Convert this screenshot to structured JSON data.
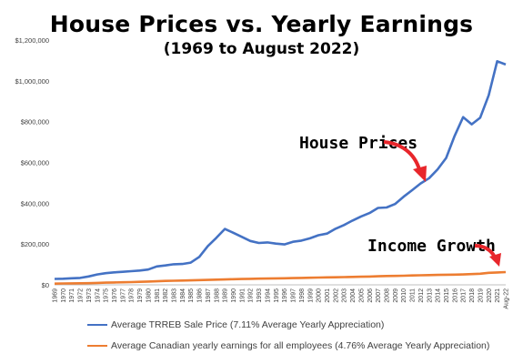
{
  "chart_data": {
    "type": "line",
    "title": "House Prices vs. Yearly Earnings",
    "subtitle": "(1969 to August 2022)",
    "categories": [
      "1969",
      "1970",
      "1971",
      "1972",
      "1973",
      "1974",
      "1975",
      "1976",
      "1977",
      "1978",
      "1979",
      "1980",
      "1981",
      "1982",
      "1983",
      "1984",
      "1985",
      "1986",
      "1987",
      "1988",
      "1989",
      "1990",
      "1991",
      "1992",
      "1993",
      "1994",
      "1995",
      "1996",
      "1997",
      "1998",
      "1999",
      "2000",
      "2001",
      "2002",
      "2003",
      "2004",
      "2005",
      "2006",
      "2007",
      "2008",
      "2009",
      "2010",
      "2011",
      "2012",
      "2013",
      "2014",
      "2015",
      "2016",
      "2017",
      "2018",
      "2019",
      "2020",
      "2021",
      "Aug-22"
    ],
    "y_ticks": [
      "$0",
      "$200,000",
      "$400,000",
      "$600,000",
      "$800,000",
      "$1,000,000",
      "$1,200,000"
    ],
    "ylim": [
      0,
      1200000
    ],
    "grid": false,
    "legend_position": "bottom",
    "series": [
      {
        "name": "Average TRREB Sale Price (7.11% Average Yearly Appreciation)",
        "color": "#4472c4",
        "values": [
          29000,
          30000,
          32000,
          34000,
          41000,
          51000,
          57000,
          61000,
          64000,
          67000,
          70000,
          75000,
          90000,
          95000,
          101000,
          102000,
          109000,
          137000,
          190000,
          230000,
          274000,
          255000,
          235000,
          215000,
          205000,
          208000,
          202000,
          198000,
          211000,
          217000,
          228000,
          243000,
          251000,
          275000,
          293000,
          315000,
          335000,
          352000,
          377000,
          379000,
          396000,
          432000,
          464000,
          497000,
          523000,
          566000,
          622000,
          730000,
          822000,
          787000,
          819000,
          929000,
          1096000,
          1080000
        ]
      },
      {
        "name": "Average Canadian yearly earnings for all employees (4.76% Average Yearly Appreciation)",
        "color": "#ed7d31",
        "values": [
          6000,
          6500,
          7000,
          7500,
          8200,
          9300,
          10500,
          11500,
          12500,
          13500,
          14600,
          16000,
          17500,
          19000,
          20000,
          21000,
          22000,
          23000,
          24200,
          25400,
          26500,
          27700,
          28700,
          29500,
          30200,
          30800,
          31500,
          32300,
          33200,
          34100,
          35000,
          35900,
          36400,
          37100,
          37900,
          38700,
          39700,
          40800,
          41900,
          43100,
          43700,
          44800,
          45800,
          46900,
          47600,
          48500,
          49700,
          50100,
          51000,
          52600,
          54400,
          59100,
          60600,
          62500
        ]
      }
    ],
    "annotations": [
      {
        "text": "House Prices",
        "color": "#e8262b"
      },
      {
        "text": "Income Growth",
        "color": "#e8262b"
      }
    ]
  }
}
